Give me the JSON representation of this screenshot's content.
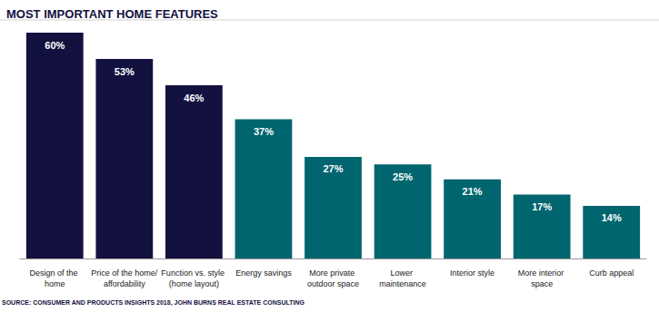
{
  "chart_data": {
    "type": "bar",
    "title": "MOST IMPORTANT HOME FEATURES",
    "source": "SOURCE: CONSUMER AND PRODUCTS INSIGHTS 2018, JOHN BURNS REAL ESTATE CONSULTING",
    "categories": [
      "Design of the home",
      "Price of the home/affordability",
      "Function vs. style (home layout)",
      "Energy savings",
      "More private outdoor space",
      "Lower maintenance",
      "Interior style",
      "More interior space",
      "Curb appeal"
    ],
    "values": [
      60,
      53,
      46,
      37,
      27,
      25,
      21,
      17,
      14
    ],
    "value_labels": [
      "60%",
      "53%",
      "46%",
      "37%",
      "27%",
      "25%",
      "21%",
      "17%",
      "14%"
    ],
    "colors": [
      "#13113f",
      "#13113f",
      "#13113f",
      "#00656e",
      "#00656e",
      "#00656e",
      "#00656e",
      "#00656e",
      "#00656e"
    ],
    "ylim": [
      0,
      60
    ],
    "grid": false,
    "data_labels": true,
    "tick_labels": "x"
  }
}
